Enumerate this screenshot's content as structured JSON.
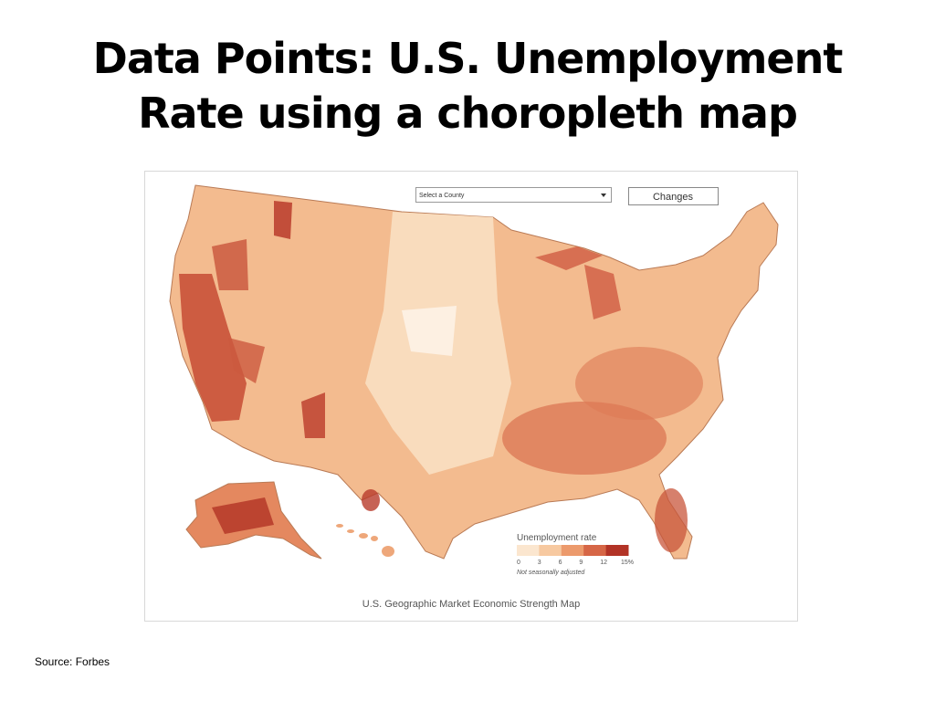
{
  "header": {
    "title": "Data Points: U.S. Unemployment Rate using a choropleth map"
  },
  "map": {
    "select_label": "Select a County",
    "button": "Changes",
    "legend": {
      "title": "Unemployment rate",
      "ticks": [
        "0",
        "3",
        "6",
        "9",
        "12",
        "15%"
      ],
      "colors": [
        "#fbe6cf",
        "#f7c9a0",
        "#ec9a6c",
        "#d66646",
        "#b23326"
      ],
      "note": "Not seasonally adjusted"
    },
    "caption": "U.S. Geographic Market Economic Strength Map"
  },
  "footer": {
    "source": "Source: Forbes"
  }
}
